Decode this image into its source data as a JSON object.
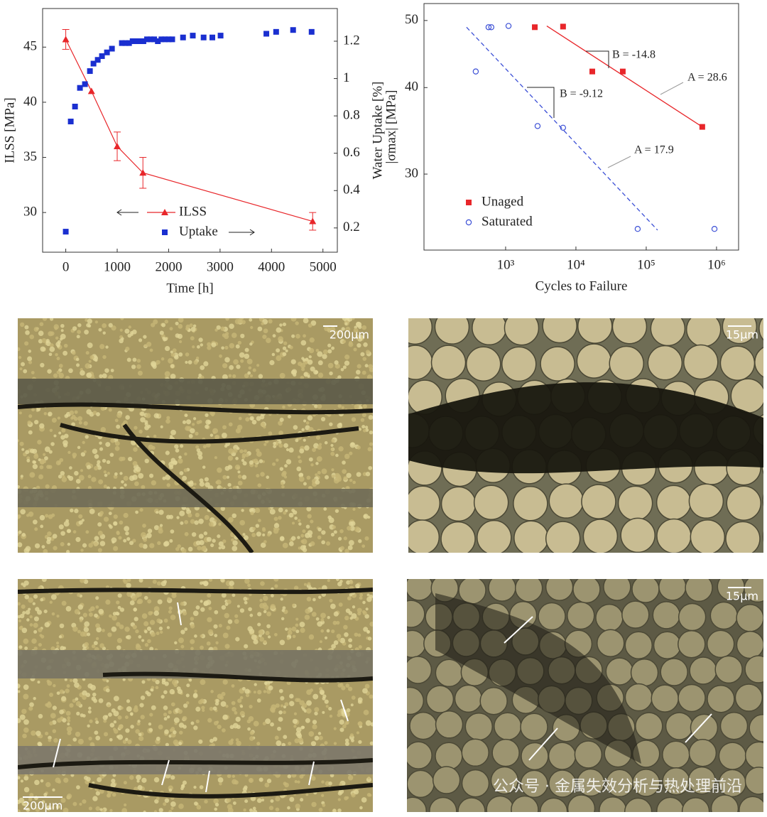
{
  "chart_data": [
    {
      "type": "line",
      "xlabel": "Time [h]",
      "ylabel": "ILSS [MPa]",
      "y2label": "Water Uptake [%]",
      "xlim": [
        -450,
        5280
      ],
      "xticks": [
        0,
        1000,
        2000,
        3000,
        4000,
        5000
      ],
      "ylim": [
        26.4,
        48.5
      ],
      "yticks": [
        30,
        35,
        40,
        45
      ],
      "y2lim": [
        0.07,
        1.375
      ],
      "y2ticks": [
        0.2,
        0.4,
        0.6,
        0.8,
        1,
        1.2
      ],
      "legend": "lower center",
      "series": [
        {
          "name": "ILSS",
          "color": "#e8262a",
          "marker": "triangle",
          "line": true,
          "x": [
            0,
            500,
            1000,
            1500,
            4800
          ],
          "values": [
            45.7,
            41,
            36,
            33.6,
            29.2
          ],
          "errors": [
            0.9,
            null,
            1.3,
            1.4,
            0.8
          ]
        },
        {
          "name": "Uptake",
          "color": "#1a2fd0",
          "marker": "square",
          "line": false,
          "axis": "y2",
          "x": [
            0,
            97,
            180,
            276,
            373,
            470,
            539,
            622,
            704,
            801,
            898,
            1091,
            1160,
            1230,
            1300,
            1370,
            1440,
            1510,
            1580,
            1650,
            1720,
            1790,
            1860,
            1930,
            2000,
            2070,
            2280,
            2470,
            2680,
            2850,
            3010,
            3900,
            4090,
            4420,
            4780
          ],
          "values": [
            0.18,
            0.77,
            0.85,
            0.95,
            0.97,
            1.04,
            1.08,
            1.1,
            1.12,
            1.14,
            1.16,
            1.19,
            1.19,
            1.19,
            1.2,
            1.2,
            1.2,
            1.2,
            1.21,
            1.21,
            1.21,
            1.2,
            1.21,
            1.21,
            1.21,
            1.21,
            1.22,
            1.23,
            1.22,
            1.22,
            1.23,
            1.24,
            1.25,
            1.26,
            1.25
          ]
        }
      ]
    },
    {
      "type": "scatter",
      "xlabel": "Cycles to Failure",
      "ylabel": "|σmax| [MPa]",
      "xscale": "log",
      "yscale": "log",
      "xlim": [
        69,
        2060000
      ],
      "xticks": [
        {
          "value": 1000,
          "label": "10³"
        },
        {
          "value": 10000,
          "label": "10⁴"
        },
        {
          "value": 100000,
          "label": "10⁵"
        },
        {
          "value": 1000000,
          "label": "10⁶"
        }
      ],
      "ylim": [
        23.3,
        52.9
      ],
      "yticks": [
        30,
        40,
        50
      ],
      "legend": "lower left",
      "series": [
        {
          "name": "Unaged",
          "color": "#e8262a",
          "marker": "square",
          "x": [
            2600,
            6560,
            17100,
            46400,
            627000
          ],
          "values": [
            48.9,
            49,
            42.2,
            42.2,
            35.1
          ]
        },
        {
          "name": "Saturated",
          "color": "#3b4fd6",
          "marker": "circle",
          "x": [
            376,
            572,
            626,
            1100,
            2850,
            6560,
            75600,
            935000
          ],
          "values": [
            42.2,
            48.9,
            48.9,
            49.1,
            35.2,
            35,
            25,
            25
          ]
        }
      ],
      "fits": [
        {
          "color": "#e8262a",
          "dashed": false,
          "x": [
            3850,
            627000
          ],
          "values": [
            49.1,
            35.1
          ]
        },
        {
          "color": "#3b4fd6",
          "dashed": true,
          "x": [
            278,
            145000
          ],
          "values": [
            48.9,
            24.9
          ]
        }
      ],
      "annotations": [
        "B = -14.8",
        "A = 28.6",
        "B = -9.12",
        "A = 17.9"
      ]
    }
  ],
  "images": {
    "scale_labels": [
      "200μm",
      "15μm",
      "200μm",
      "15μm"
    ]
  },
  "watermark": "公众号 · 金属失效分析与热处理前沿"
}
